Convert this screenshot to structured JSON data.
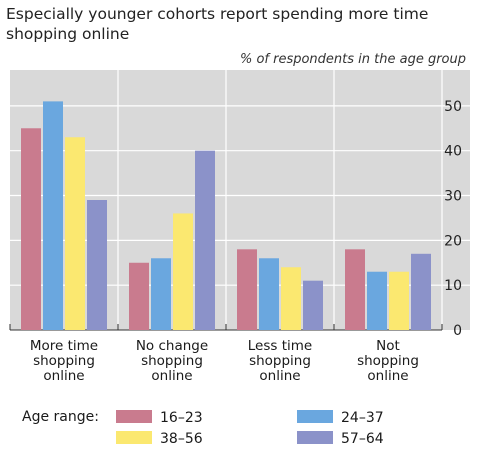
{
  "title": "Especially younger cohorts report spending more time shopping online",
  "chart_data": {
    "type": "bar",
    "title": "Especially younger cohorts report spending more time shopping online",
    "ylabel": "% of respondents in the age group",
    "ylim": [
      0,
      58
    ],
    "yticks": [
      0,
      10,
      20,
      30,
      40,
      50
    ],
    "grid": true,
    "legend_title": "Age range:",
    "legend_position": "bottom",
    "categories": [
      "More time shopping online",
      "No change shopping online",
      "Less time shopping online",
      "Not shopping online"
    ],
    "category_lines": [
      [
        "More time",
        "shopping",
        "online"
      ],
      [
        "No change",
        "shopping",
        "online"
      ],
      [
        "Less time",
        "shopping",
        "online"
      ],
      [
        "Not",
        "shopping",
        "online"
      ]
    ],
    "series": [
      {
        "name": "16–23",
        "color": "#c97b8e",
        "values": [
          45,
          15,
          18,
          18
        ]
      },
      {
        "name": "24–37",
        "color": "#6aa7df",
        "values": [
          51,
          16,
          16,
          13
        ]
      },
      {
        "name": "38–56",
        "color": "#fbe870",
        "values": [
          43,
          26,
          14,
          13
        ]
      },
      {
        "name": "57–64",
        "color": "#8b92c9",
        "values": [
          29,
          40,
          11,
          17
        ]
      }
    ]
  }
}
